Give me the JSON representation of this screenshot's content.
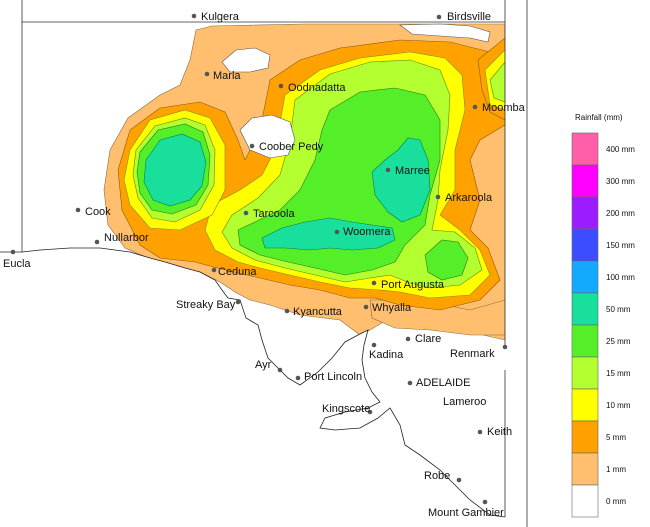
{
  "legend": {
    "title": "Rainfall (mm)",
    "bands": [
      {
        "label": "400 mm",
        "color": "#ff5fa8"
      },
      {
        "label": "300 mm",
        "color": "#ff00ff"
      },
      {
        "label": "200 mm",
        "color": "#9b1dff"
      },
      {
        "label": "150 mm",
        "color": "#3b4dff"
      },
      {
        "label": "100 mm",
        "color": "#12a9ff"
      },
      {
        "label": "50 mm",
        "color": "#19df9c"
      },
      {
        "label": "25 mm",
        "color": "#55ef2a"
      },
      {
        "label": "15 mm",
        "color": "#b4ff2f"
      },
      {
        "label": "10 mm",
        "color": "#ffff00"
      },
      {
        "label": "5 mm",
        "color": "#ffa200"
      },
      {
        "label": "1 mm",
        "color": "#ffbf6e"
      },
      {
        "label": "0 mm",
        "color": "#ffffff"
      }
    ]
  },
  "towns": {
    "kulgera": "Kulgera",
    "birdsville": "Birdsville",
    "marla": "Marla",
    "oodnadatta": "Oodnadatta",
    "moomba": "Moomba",
    "coober_pedy": "Coober Pedy",
    "marree": "Marree",
    "arkaroola": "Arkaroola",
    "cook": "Cook",
    "tarcoola": "Tarcoola",
    "nullarbor": "Nullarbor",
    "woomera": "Woomera",
    "eucla": "Eucla",
    "ceduna": "Ceduna",
    "port_augusta": "Port Augusta",
    "streaky_bay": "Streaky Bay",
    "kyancutta": "Kyancutta",
    "whyalla": "Whyalla",
    "clare": "Clare",
    "kadina": "Kadina",
    "renmark": "Renmark",
    "ayr": "Ayr",
    "port_lincoln": "Port Lincoln",
    "adelaide": "ADELAIDE",
    "kingscote": "Kingscote",
    "lameroo": "Lameroo",
    "keith": "Keith",
    "robe": "Robe",
    "mount_gambier": "Mount Gambier"
  }
}
